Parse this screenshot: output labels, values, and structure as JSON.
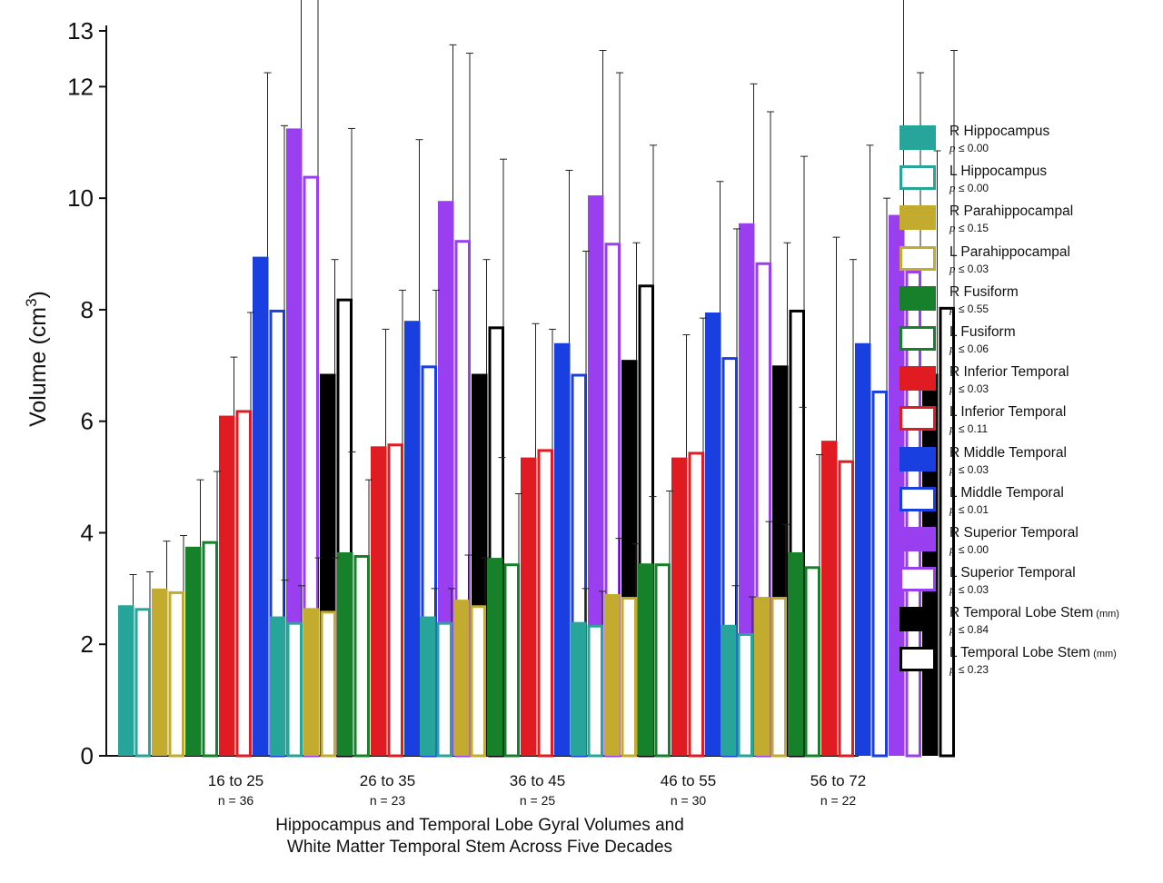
{
  "chart_data": {
    "type": "bar",
    "xlabel_lines": [
      "Hippocampus and Temporal Lobe Gyral Volumes and",
      "White Matter Temporal Stem Across Five Decades"
    ],
    "ylabel": "Volume (cm3)",
    "ylim": [
      0,
      13
    ],
    "y_ticks": [
      {
        "value": 0,
        "label": "0"
      },
      {
        "value": 2,
        "label": "2"
      },
      {
        "value": 4,
        "label": "4"
      },
      {
        "value": 6,
        "label": "6"
      },
      {
        "value": 8,
        "label": "8"
      },
      {
        "value": 10,
        "label": "10"
      },
      {
        "value": 12,
        "label": "12"
      },
      {
        "value": 13,
        "label": "13"
      }
    ],
    "categories": [
      "16 to 25",
      "26 to 35",
      "36 to 45",
      "46 to 55",
      "56 to 72"
    ],
    "category_n": [
      "n = 36",
      "n = 23",
      "n = 25",
      "n = 30",
      "n = 22"
    ],
    "series": [
      {
        "name": "R Hippocampus",
        "p": "p ≤ 0.00",
        "color": "#27a59a",
        "fill": "solid",
        "values": [
          2.7,
          2.5,
          2.5,
          2.4,
          2.35
        ],
        "err": [
          3.25,
          3.15,
          3.0,
          3.0,
          3.05
        ]
      },
      {
        "name": "L Hippocampus",
        "p": "p ≤ 0.00",
        "color": "#27a59a",
        "fill": "outline",
        "values": [
          2.65,
          2.4,
          2.4,
          2.35,
          2.2
        ],
        "err": [
          3.3,
          3.05,
          3.0,
          2.95,
          2.85
        ]
      },
      {
        "name": "R Parahippocampal",
        "p": "p ≤ 0.15",
        "color": "#c2ab2e",
        "fill": "solid",
        "values": [
          3.0,
          2.65,
          2.8,
          2.9,
          2.85
        ],
        "err": [
          3.85,
          3.55,
          3.6,
          3.9,
          4.2
        ]
      },
      {
        "name": "L Parahippocampal",
        "p": "p ≤ 0.03",
        "color": "#c2ab2e",
        "fill": "outline",
        "values": [
          2.95,
          2.6,
          2.7,
          2.85,
          2.85
        ],
        "err": [
          3.95,
          3.55,
          3.55,
          3.8,
          4.15
        ]
      },
      {
        "name": "R Fusiform",
        "p": "p ≤ 0.55",
        "color": "#17802a",
        "fill": "solid",
        "values": [
          3.75,
          3.65,
          3.55,
          3.45,
          3.65
        ],
        "err": [
          4.95,
          5.45,
          5.35,
          4.65,
          6.25
        ]
      },
      {
        "name": "L Fusiform",
        "p": "p ≤ 0.06",
        "color": "#17802a",
        "fill": "outline",
        "values": [
          3.85,
          3.6,
          3.45,
          3.45,
          3.4
        ],
        "err": [
          5.1,
          4.95,
          4.7,
          4.75,
          5.4
        ]
      },
      {
        "name": "R Inferior Temporal",
        "p": "p ≤ 0.03",
        "color": "#e01b22",
        "fill": "solid",
        "values": [
          6.1,
          5.55,
          5.35,
          5.35,
          5.65
        ],
        "err": [
          7.15,
          7.65,
          7.75,
          7.55,
          9.3
        ]
      },
      {
        "name": "L Inferior Temporal",
        "p": "p ≤ 0.11",
        "color": "#e01b22",
        "fill": "outline",
        "values": [
          6.2,
          5.6,
          5.5,
          5.45,
          5.3
        ],
        "err": [
          7.95,
          8.35,
          7.65,
          7.85,
          8.9
        ]
      },
      {
        "name": "R Middle Temporal",
        "p": "p ≤ 0.03",
        "color": "#1a3fe0",
        "fill": "solid",
        "values": [
          8.95,
          7.8,
          7.4,
          7.95,
          7.4
        ],
        "err": [
          12.25,
          11.05,
          10.5,
          10.3,
          10.95
        ]
      },
      {
        "name": "L Middle Temporal",
        "p": "p ≤ 0.01",
        "color": "#1a3fe0",
        "fill": "outline",
        "values": [
          8.0,
          7.0,
          6.85,
          7.15,
          6.55
        ],
        "err": [
          11.3,
          8.35,
          9.05,
          9.45,
          10.0
        ]
      },
      {
        "name": "R Superior Temporal",
        "p": "p ≤ 0.00",
        "color": "#9a3ff0",
        "fill": "solid",
        "values": [
          11.25,
          9.95,
          10.05,
          9.55,
          9.7
        ],
        "err": [
          14.0,
          12.75,
          12.65,
          12.05,
          14.0
        ]
      },
      {
        "name": "L Superior Temporal",
        "p": "p ≤ 0.03",
        "color": "#9a3ff0",
        "fill": "outline",
        "values": [
          10.4,
          9.25,
          9.2,
          8.85,
          8.7
        ],
        "err": [
          13.75,
          12.6,
          12.25,
          11.55,
          12.25
        ]
      },
      {
        "name": "R Temporal Lobe Stem",
        "unit": "(mm)",
        "p": "p ≤ 0.84",
        "color": "#000000",
        "fill": "solid",
        "values": [
          6.85,
          6.85,
          7.1,
          7.0,
          6.85
        ],
        "err": [
          8.9,
          8.9,
          9.2,
          9.2,
          10.85
        ]
      },
      {
        "name": "L Temporal Lobe Stem",
        "unit": "(mm)",
        "p": "p ≤ 0.23",
        "color": "#000000",
        "fill": "outline",
        "values": [
          8.2,
          7.7,
          8.45,
          8.0,
          8.05
        ],
        "err": [
          11.25,
          10.7,
          10.95,
          10.75,
          12.65
        ]
      }
    ]
  }
}
